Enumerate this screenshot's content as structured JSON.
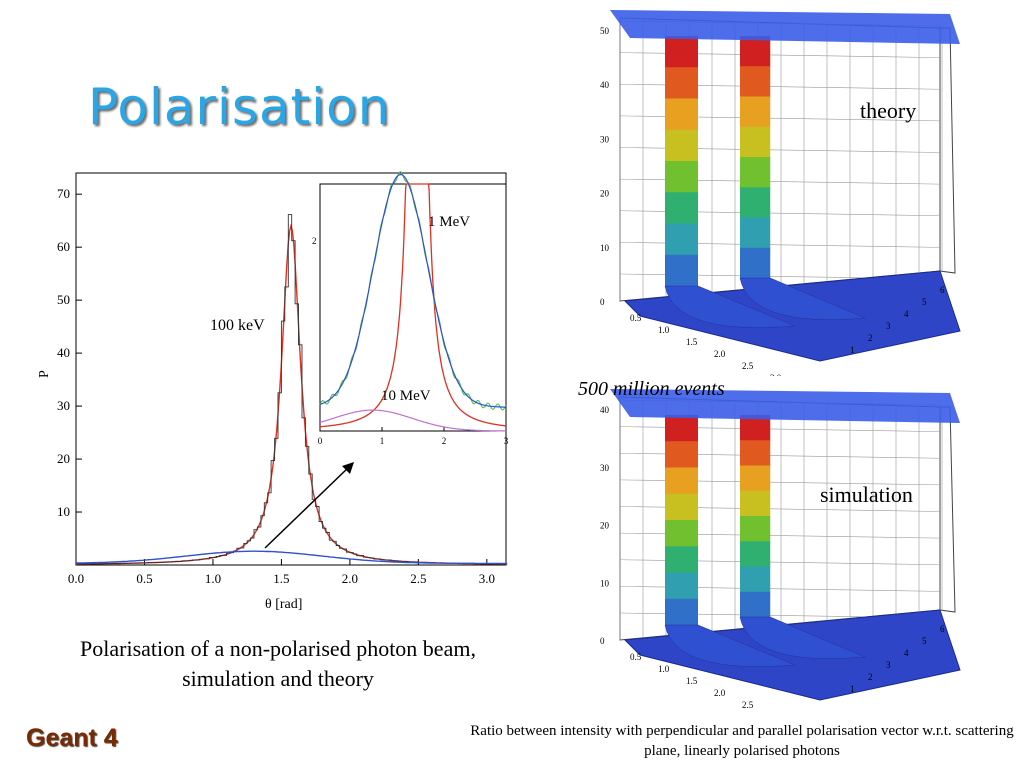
{
  "title": "Polarisation",
  "footer": "Geant 4",
  "left_caption": "Polarisation of a non-polarised photon beam, simulation and theory",
  "right_caption": "Ratio between intensity with perpendicular and parallel polarisation vector w.r.t. scattering plane, linearly polarised photons",
  "events_label": "500 million events",
  "theory_label": "theory",
  "simulation_label": "simulation",
  "colors": {
    "title": "#2aa6e6",
    "footer": "#7a2a00",
    "theory": "#e03020",
    "sim_blue": "#3050d0"
  },
  "chart_data": [
    {
      "type": "line",
      "xlabel": "θ [rad]",
      "ylabel": "P",
      "xlim": [
        0.0,
        3.14
      ],
      "ylim": [
        0,
        74
      ],
      "x_ticks": [
        "0.0",
        "0.5",
        "1.0",
        "1.5",
        "2.0",
        "2.5",
        "3.0"
      ],
      "y_ticks": [
        "10",
        "20",
        "30",
        "40",
        "50",
        "60",
        "70"
      ],
      "annotations": [
        "100 keV"
      ],
      "series": [
        {
          "name": "100 keV",
          "peak_x": 1.57,
          "peak_y": 64
        },
        {
          "name": "",
          "peak_x": 1.3,
          "peak_y": 2.3
        }
      ]
    },
    {
      "type": "line",
      "inset": true,
      "xlim": [
        0,
        3
      ],
      "x_ticks": [
        "0",
        "1",
        "2",
        "3"
      ],
      "y_ticks": [
        "2"
      ],
      "annotations": [
        "1 MeV",
        "10 MeV"
      ],
      "series": [
        {
          "name": "1 MeV",
          "peak_x": 1.3,
          "peak_y": 2.45
        },
        {
          "name": "10 MeV",
          "peak_x": 0.85,
          "peak_y": 0.22
        }
      ]
    }
  ],
  "surface_plots": {
    "theory": {
      "z_ticks": [
        "0",
        "10",
        "20",
        "30",
        "40",
        "50"
      ],
      "theta_ticks": [
        "0.5",
        "1.0",
        "1.5",
        "2.0",
        "2.5",
        "3.0"
      ],
      "phi_ticks": [
        "1",
        "2",
        "3",
        "4",
        "5",
        "6"
      ]
    },
    "simulation": {
      "z_ticks": [
        "0",
        "10",
        "20",
        "30",
        "40"
      ],
      "theta_ticks": [
        "0.5",
        "1.0",
        "1.5",
        "2.0",
        "2.5"
      ],
      "phi_ticks": [
        "1",
        "2",
        "3",
        "4",
        "5",
        "6"
      ]
    }
  }
}
